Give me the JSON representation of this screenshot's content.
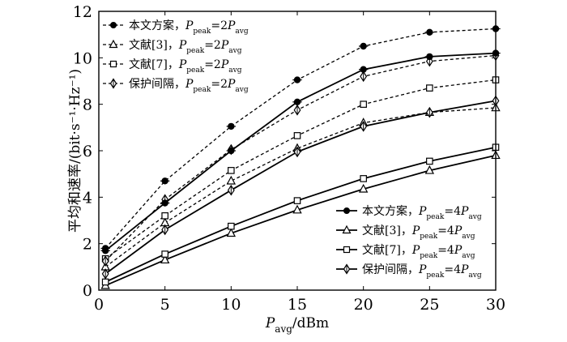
{
  "chart_data": {
    "type": "line",
    "title": "",
    "xlabel": {
      "base": "P",
      "sub": "avg",
      "unit": "/dBm"
    },
    "ylabel": "平均和速率/(bit·s⁻¹·Hz⁻¹)",
    "xlim": [
      0,
      30
    ],
    "ylim": [
      0,
      12
    ],
    "xticks": [
      0,
      5,
      10,
      15,
      20,
      25,
      30
    ],
    "yticks": [
      0,
      2,
      4,
      6,
      8,
      10,
      12
    ],
    "x": [
      0.5,
      5,
      10,
      15,
      20,
      25,
      30
    ],
    "series": [
      {
        "name": "本文方案",
        "condition": "2",
        "marker": "dot",
        "dash": true,
        "legend_group": 0,
        "values": [
          1.8,
          4.7,
          7.05,
          9.05,
          10.5,
          11.1,
          11.25
        ]
      },
      {
        "name": "文献[3]",
        "condition": "2",
        "marker": "triangle",
        "dash": true,
        "legend_group": 0,
        "values": [
          1.0,
          2.9,
          4.7,
          6.1,
          7.2,
          7.65,
          7.85
        ]
      },
      {
        "name": "文献[7]",
        "condition": "2",
        "marker": "square",
        "dash": true,
        "legend_group": 0,
        "values": [
          1.35,
          3.2,
          5.15,
          6.65,
          8.0,
          8.7,
          9.05
        ]
      },
      {
        "name": "保护间隔",
        "condition": "2",
        "marker": "diamond",
        "dash": true,
        "legend_group": 0,
        "values": [
          1.25,
          3.9,
          6.05,
          7.75,
          9.2,
          9.85,
          10.1
        ]
      },
      {
        "name": "本文方案",
        "condition": "4",
        "marker": "dot",
        "dash": false,
        "legend_group": 1,
        "values": [
          1.7,
          3.75,
          6.0,
          8.1,
          9.5,
          10.05,
          10.2
        ]
      },
      {
        "name": "文献[3]",
        "condition": "4",
        "marker": "triangle",
        "dash": false,
        "legend_group": 1,
        "values": [
          0.2,
          1.3,
          2.45,
          3.45,
          4.35,
          5.15,
          5.8
        ]
      },
      {
        "name": "文献[7]",
        "condition": "4",
        "marker": "square",
        "dash": false,
        "legend_group": 1,
        "values": [
          0.35,
          1.55,
          2.75,
          3.85,
          4.8,
          5.55,
          6.15
        ]
      },
      {
        "name": "保护间隔",
        "condition": "4",
        "marker": "diamond",
        "dash": false,
        "legend_group": 1,
        "values": [
          0.7,
          2.6,
          4.3,
          5.95,
          7.05,
          7.65,
          8.15
        ]
      }
    ],
    "legend": {
      "placement": [
        "top-left",
        "bottom-right"
      ],
      "p_base": "P",
      "peak_sub": "peak",
      "avg_sub": "avg"
    }
  }
}
